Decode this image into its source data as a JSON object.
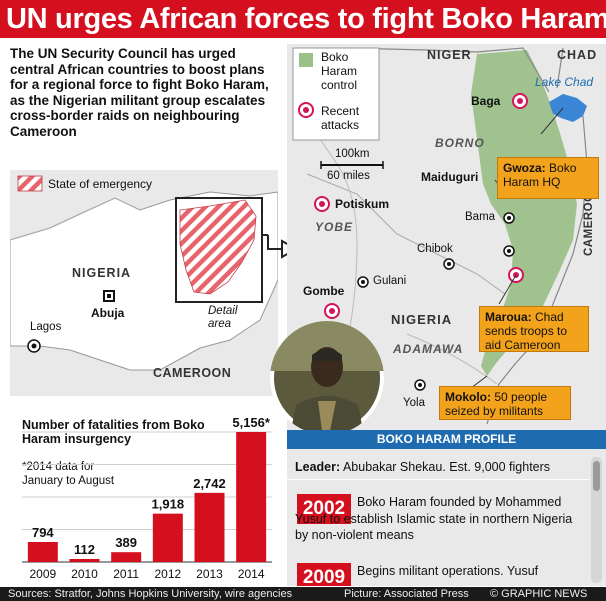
{
  "header": {
    "title": "UN urges African forces to fight Boko Haram"
  },
  "intro": {
    "text": "The UN Security Council has urged central African countries to boost plans for a regional force to fight Boko Haram, as the Nigerian militant group escalates cross-border raids on neighbouring Cameroon"
  },
  "inset_map": {
    "legend_state_of_emergency": "State of emergency",
    "labels": {
      "nigeria": "NIGERIA",
      "abuja": "Abuja",
      "lagos": "Lagos",
      "cameroon": "CAMEROON",
      "detail_area": "Detail area"
    }
  },
  "main_map": {
    "legend": {
      "control": "Boko Haram control",
      "attacks": "Recent attacks"
    },
    "scale": {
      "km": "100km",
      "miles": "60 miles"
    },
    "countries": {
      "niger": "NIGER",
      "chad": "CHAD",
      "nigeria": "NIGERIA",
      "cameroon": "CAMEROON"
    },
    "regions": {
      "borno": "BORNO",
      "yobe": "YOBE",
      "adamawa": "ADAMAWA"
    },
    "water": {
      "lake_chad": "Lake Chad"
    },
    "cities": {
      "baga": "Baga",
      "maiduguri": "Maiduguri",
      "bama": "Bama",
      "chibok": "Chibok",
      "potiskum": "Potiskum",
      "gombe": "Gombe",
      "gulani": "Gulani",
      "yola": "Yola"
    },
    "callouts": {
      "gwoza_place": "Gwoza:",
      "gwoza_text": "Boko Haram HQ",
      "maroua_place": "Maroua:",
      "maroua_text": "Chad sends troops to aid Cameroon",
      "mokolo_place": "Mokolo:",
      "mokolo_text": "50 people seized by militants"
    },
    "colors": {
      "control": "#9cc08a",
      "attack": "#d4145a",
      "callout": "#f3a21b",
      "water": "#3a86d4"
    }
  },
  "chart_data": {
    "type": "bar",
    "title": "Number of fatalities from Boko Haram insurgency",
    "note": "*2014 data for January to August",
    "categories": [
      "2009",
      "2010",
      "2011",
      "2012",
      "2013",
      "2014"
    ],
    "values": [
      794,
      112,
      389,
      1918,
      2742,
      5156
    ],
    "labels": [
      "794",
      "112",
      "389",
      "1,918",
      "2,742",
      "5,156*"
    ],
    "ylim": [
      0,
      5156
    ],
    "grid": true,
    "color": "#d4101f"
  },
  "profile": {
    "heading": "BOKO HARAM PROFILE",
    "leader_label": "Leader:",
    "leader_text": "Abubakar Shekau. Est. 9,000 fighters",
    "timeline": [
      {
        "year": "2002",
        "text": "Boko Haram founded by Mohammed Yusuf to establish Islamic state in northern Nigeria by non-violent means"
      },
      {
        "year": "2009",
        "text": "Begins militant operations. Yusuf"
      }
    ]
  },
  "footer": {
    "sources": "Sources: Stratfor, Johns Hopkins University, wire agencies",
    "picture": "Picture: Associated Press",
    "credit": "© GRAPHIC NEWS"
  }
}
